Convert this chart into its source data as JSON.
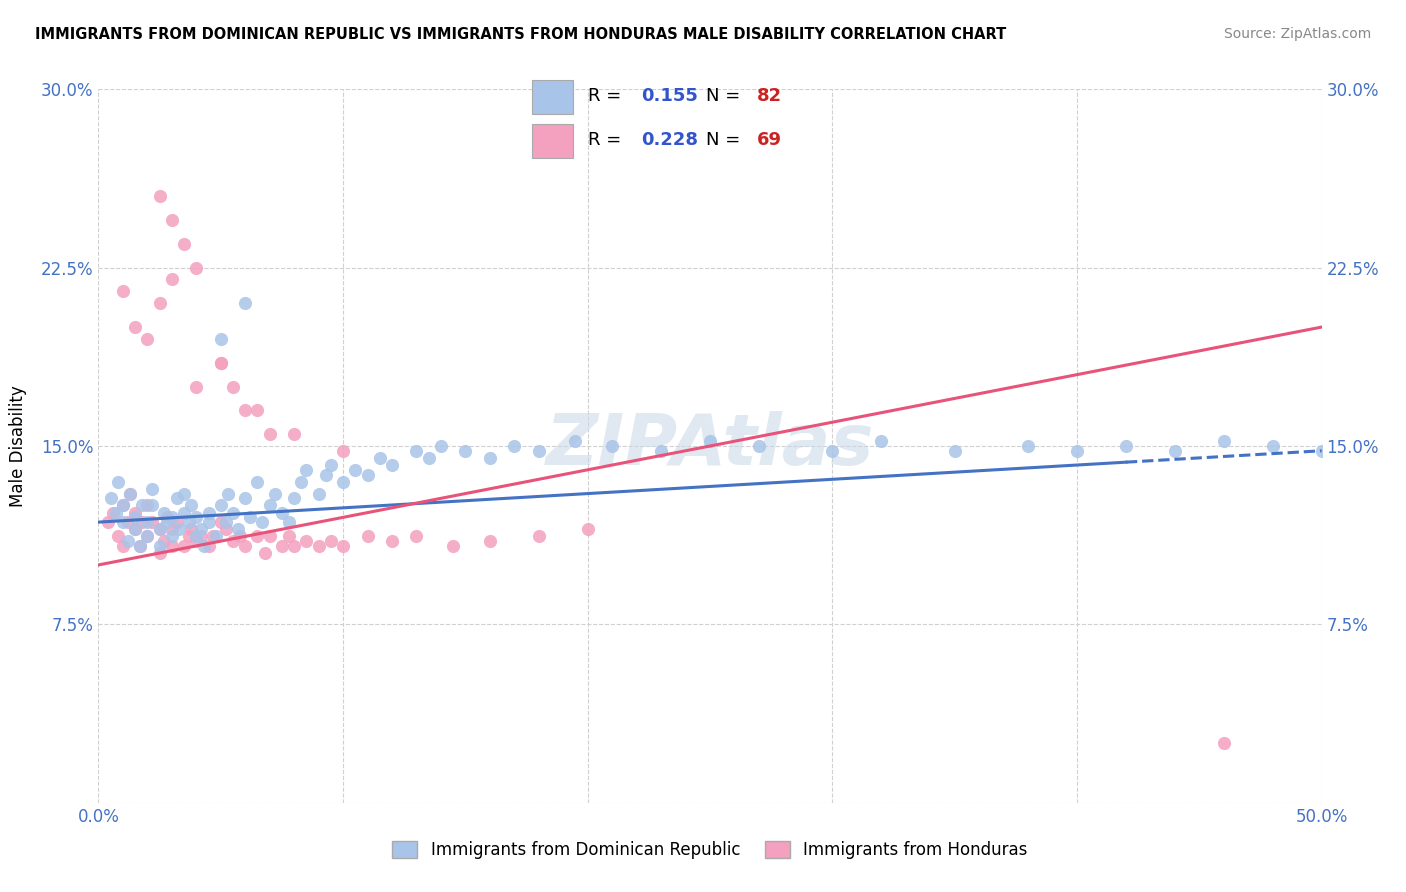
{
  "title": "IMMIGRANTS FROM DOMINICAN REPUBLIC VS IMMIGRANTS FROM HONDURAS MALE DISABILITY CORRELATION CHART",
  "source": "Source: ZipAtlas.com",
  "ylabel": "Male Disability",
  "x_min": 0.0,
  "x_max": 0.5,
  "y_min": 0.0,
  "y_max": 0.3,
  "R_blue": 0.155,
  "N_blue": 82,
  "R_pink": 0.228,
  "N_pink": 69,
  "color_blue": "#a8c4e8",
  "color_pink": "#f4a0bf",
  "line_color_blue": "#4472c4",
  "line_color_pink": "#e8537a",
  "legend_label_blue": "Immigrants from Dominican Republic",
  "legend_label_pink": "Immigrants from Honduras",
  "blue_scatter_x": [
    0.005,
    0.007,
    0.008,
    0.01,
    0.01,
    0.012,
    0.013,
    0.015,
    0.015,
    0.017,
    0.018,
    0.02,
    0.02,
    0.022,
    0.022,
    0.025,
    0.025,
    0.027,
    0.028,
    0.03,
    0.03,
    0.032,
    0.033,
    0.035,
    0.035,
    0.037,
    0.038,
    0.04,
    0.04,
    0.042,
    0.043,
    0.045,
    0.045,
    0.048,
    0.05,
    0.052,
    0.053,
    0.055,
    0.057,
    0.06,
    0.062,
    0.065,
    0.067,
    0.07,
    0.072,
    0.075,
    0.078,
    0.08,
    0.083,
    0.085,
    0.09,
    0.093,
    0.095,
    0.1,
    0.105,
    0.11,
    0.115,
    0.12,
    0.13,
    0.135,
    0.14,
    0.15,
    0.16,
    0.17,
    0.18,
    0.195,
    0.21,
    0.23,
    0.25,
    0.27,
    0.3,
    0.32,
    0.35,
    0.38,
    0.4,
    0.42,
    0.44,
    0.46,
    0.48,
    0.5,
    0.05,
    0.06
  ],
  "blue_scatter_y": [
    0.128,
    0.122,
    0.135,
    0.118,
    0.125,
    0.11,
    0.13,
    0.115,
    0.12,
    0.108,
    0.125,
    0.112,
    0.118,
    0.125,
    0.132,
    0.115,
    0.108,
    0.122,
    0.118,
    0.112,
    0.12,
    0.128,
    0.115,
    0.122,
    0.13,
    0.118,
    0.125,
    0.112,
    0.12,
    0.115,
    0.108,
    0.122,
    0.118,
    0.112,
    0.125,
    0.118,
    0.13,
    0.122,
    0.115,
    0.128,
    0.12,
    0.135,
    0.118,
    0.125,
    0.13,
    0.122,
    0.118,
    0.128,
    0.135,
    0.14,
    0.13,
    0.138,
    0.142,
    0.135,
    0.14,
    0.138,
    0.145,
    0.142,
    0.148,
    0.145,
    0.15,
    0.148,
    0.145,
    0.15,
    0.148,
    0.152,
    0.15,
    0.148,
    0.152,
    0.15,
    0.148,
    0.152,
    0.148,
    0.15,
    0.148,
    0.15,
    0.148,
    0.152,
    0.15,
    0.148,
    0.195,
    0.21
  ],
  "pink_scatter_x": [
    0.004,
    0.006,
    0.008,
    0.01,
    0.01,
    0.012,
    0.013,
    0.015,
    0.015,
    0.017,
    0.018,
    0.02,
    0.02,
    0.022,
    0.025,
    0.025,
    0.027,
    0.028,
    0.03,
    0.03,
    0.032,
    0.035,
    0.037,
    0.038,
    0.04,
    0.042,
    0.045,
    0.047,
    0.05,
    0.052,
    0.055,
    0.058,
    0.06,
    0.065,
    0.068,
    0.07,
    0.075,
    0.078,
    0.08,
    0.085,
    0.09,
    0.095,
    0.1,
    0.11,
    0.12,
    0.13,
    0.145,
    0.16,
    0.18,
    0.2,
    0.01,
    0.015,
    0.02,
    0.025,
    0.03,
    0.04,
    0.05,
    0.06,
    0.07,
    0.025,
    0.03,
    0.035,
    0.04,
    0.05,
    0.055,
    0.065,
    0.08,
    0.1,
    0.46
  ],
  "pink_scatter_y": [
    0.118,
    0.122,
    0.112,
    0.125,
    0.108,
    0.118,
    0.13,
    0.115,
    0.122,
    0.108,
    0.118,
    0.112,
    0.125,
    0.118,
    0.105,
    0.115,
    0.11,
    0.12,
    0.108,
    0.115,
    0.118,
    0.108,
    0.112,
    0.115,
    0.11,
    0.112,
    0.108,
    0.112,
    0.118,
    0.115,
    0.11,
    0.112,
    0.108,
    0.112,
    0.105,
    0.112,
    0.108,
    0.112,
    0.108,
    0.11,
    0.108,
    0.11,
    0.108,
    0.112,
    0.11,
    0.112,
    0.108,
    0.11,
    0.112,
    0.115,
    0.215,
    0.2,
    0.195,
    0.21,
    0.22,
    0.175,
    0.185,
    0.165,
    0.155,
    0.255,
    0.245,
    0.235,
    0.225,
    0.185,
    0.175,
    0.165,
    0.155,
    0.148,
    0.025
  ]
}
